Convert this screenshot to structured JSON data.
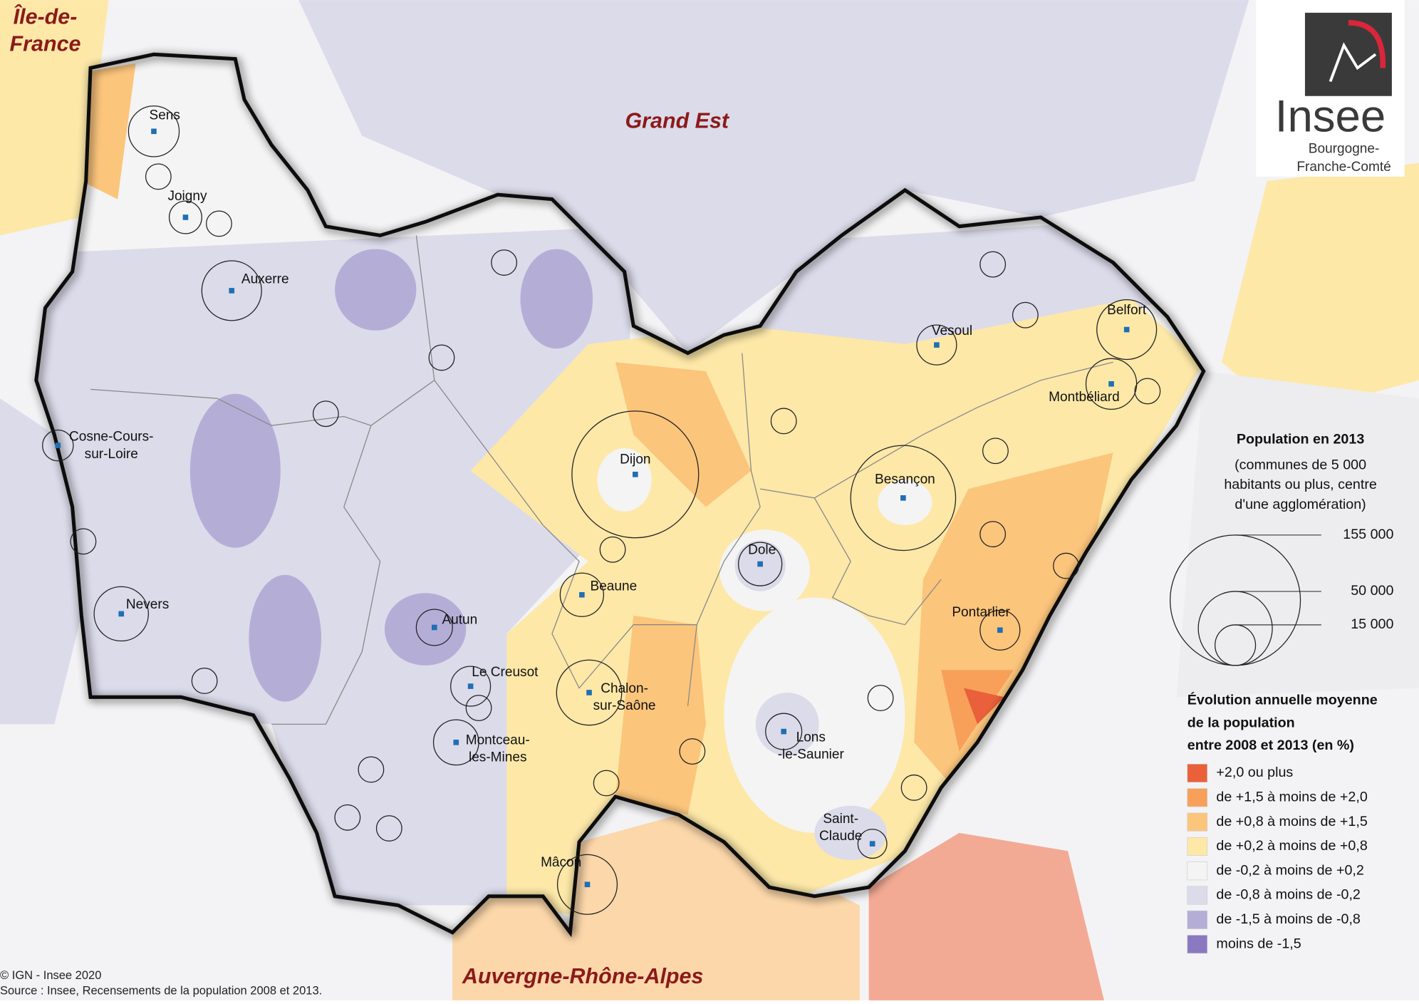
{
  "map": {
    "regions": {
      "grand_est": "Grand Est",
      "auvergne": "Auvergne-Rhône-Alpes",
      "idf": [
        "Île-de-",
        "France"
      ]
    },
    "cities": [
      [
        "Sens"
      ],
      [
        "Joigny"
      ],
      [
        "Auxerre"
      ],
      [
        "Cosne-Cours-",
        "sur-Loire"
      ],
      [
        "Nevers"
      ],
      [
        "Autun"
      ],
      [
        "Le Creusot"
      ],
      [
        "Montceau-",
        "les-Mines"
      ],
      [
        "Dijon"
      ],
      [
        "Beaune"
      ],
      [
        "Chalon-",
        "sur-Saône"
      ],
      [
        "Mâcon"
      ],
      [
        "Dole"
      ],
      [
        "Lons",
        "-le-Saunier"
      ],
      [
        "Saint-",
        "Claude"
      ],
      [
        "Besançon"
      ],
      [
        "Vesoul"
      ],
      [
        "Pontarlier"
      ],
      [
        "Belfort"
      ],
      [
        "Montbéliard"
      ]
    ],
    "size_legend": {
      "title": "Population en 2013",
      "subtitle": [
        "(communes de 5 000",
        "habitants ou plus, centre",
        "d'une agglomération)"
      ],
      "sizes": [
        {
          "value": 155000,
          "label": "155 000"
        },
        {
          "value": 50000,
          "label": "50 000"
        },
        {
          "value": 15000,
          "label": "15 000"
        }
      ]
    },
    "color_legend": {
      "title": [
        "Évolution annuelle moyenne",
        "de la population",
        "entre 2008 et 2013 (en %)"
      ],
      "classes": [
        {
          "label": "+2,0 ou plus",
          "color": "#e9603a"
        },
        {
          "label": "de +1,5 à moins de +2,0",
          "color": "#f8a05a"
        },
        {
          "label": "de +0,8 à moins de +1,5",
          "color": "#fcc57c"
        },
        {
          "label": "de +0,2 à moins de +0,8",
          "color": "#fde8a8"
        },
        {
          "label": "de -0,2 à moins de +0,2",
          "color": "#f4f4f4"
        },
        {
          "label": "de -0,8 à moins de -0,2",
          "color": "#dcdbea"
        },
        {
          "label": "de -1,5 à moins de -0,8",
          "color": "#b4aed7"
        },
        {
          "label": "moins de -1,5",
          "color": "#8a78c0"
        }
      ]
    },
    "logo": {
      "name": "Insee",
      "region": [
        "Bourgogne-",
        "Franche-Comté"
      ]
    },
    "credits": [
      "© IGN - Insee 2020",
      "Source : Insee, Recensements de la population 2008 et 2013."
    ]
  }
}
